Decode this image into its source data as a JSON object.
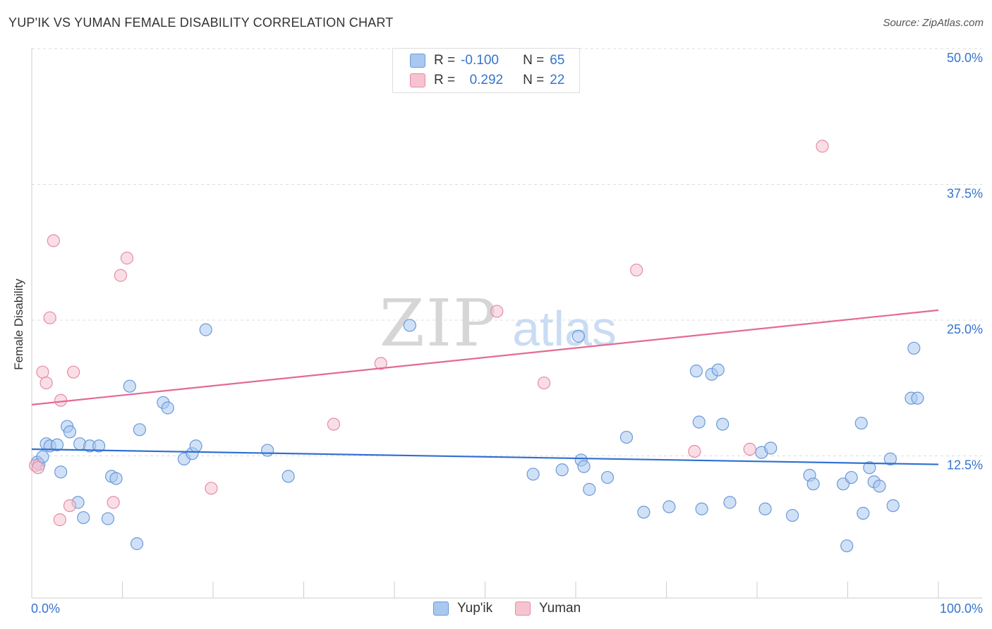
{
  "title": "YUP'IK VS YUMAN FEMALE DISABILITY CORRELATION CHART",
  "source": "Source: ZipAtlas.com",
  "watermark": {
    "zip": "ZIP",
    "atlas": "atlas"
  },
  "legend": {
    "rows": [
      {
        "r_label": "R =",
        "r_value": "-0.100",
        "n_label": "N =",
        "n_value": "65",
        "color": "#a9c8f0",
        "border": "#6a9ad8"
      },
      {
        "r_label": "R =",
        "r_value": "0.292",
        "n_label": "N =",
        "n_value": "22",
        "color": "#f6c3d1",
        "border": "#e58ca6"
      }
    ]
  },
  "bottom_legend": [
    {
      "label": "Yup'ik",
      "color": "#a9c8f0",
      "border": "#6a9ad8"
    },
    {
      "label": "Yuman",
      "color": "#f6c3d1",
      "border": "#e58ca6"
    }
  ],
  "chart_data": {
    "type": "scatter",
    "title": "YUP'IK VS YUMAN FEMALE DISABILITY CORRELATION CHART",
    "xlabel": "",
    "ylabel": "Female Disability",
    "xlim": [
      0,
      100
    ],
    "ylim": [
      0,
      50
    ],
    "x_tick_labels": [
      "0.0%",
      "100.0%"
    ],
    "y_ticks": [
      12.5,
      25.0,
      37.5,
      50.0
    ],
    "y_tick_labels": [
      "12.5%",
      "25.0%",
      "37.5%",
      "50.0%"
    ],
    "grid": true,
    "legend_position": "top-center",
    "series": [
      {
        "name": "Yup'ik",
        "color": "#6a9ad8",
        "fill": "#a9c8f0",
        "trend": {
          "x": [
            0,
            100
          ],
          "y": [
            13.7,
            12.3
          ],
          "color": "#2e6fd0"
        },
        "points": [
          [
            0.6,
            12.5
          ],
          [
            0.8,
            12.3
          ],
          [
            1.2,
            13.0
          ],
          [
            1.6,
            14.2
          ],
          [
            2.0,
            14.0
          ],
          [
            2.8,
            14.1
          ],
          [
            3.2,
            11.6
          ],
          [
            3.9,
            15.8
          ],
          [
            4.2,
            15.3
          ],
          [
            5.1,
            8.8
          ],
          [
            5.3,
            14.2
          ],
          [
            5.7,
            7.4
          ],
          [
            6.4,
            14.0
          ],
          [
            7.4,
            14.0
          ],
          [
            8.4,
            7.3
          ],
          [
            8.8,
            11.2
          ],
          [
            9.3,
            11.0
          ],
          [
            10.8,
            19.5
          ],
          [
            11.6,
            5.0
          ],
          [
            11.9,
            15.5
          ],
          [
            14.5,
            18.0
          ],
          [
            15.0,
            17.5
          ],
          [
            16.8,
            12.8
          ],
          [
            17.7,
            13.3
          ],
          [
            18.1,
            14.0
          ],
          [
            19.2,
            24.7
          ],
          [
            26.0,
            13.6
          ],
          [
            28.3,
            11.2
          ],
          [
            41.7,
            25.1
          ],
          [
            55.3,
            11.4
          ],
          [
            58.5,
            11.8
          ],
          [
            60.3,
            24.1
          ],
          [
            60.6,
            12.7
          ],
          [
            60.9,
            12.1
          ],
          [
            61.5,
            10.0
          ],
          [
            63.5,
            11.1
          ],
          [
            65.6,
            14.8
          ],
          [
            67.5,
            7.9
          ],
          [
            70.3,
            8.4
          ],
          [
            73.3,
            20.9
          ],
          [
            73.6,
            16.2
          ],
          [
            73.9,
            8.2
          ],
          [
            75.0,
            20.6
          ],
          [
            75.7,
            21.0
          ],
          [
            76.2,
            16.0
          ],
          [
            77.0,
            8.8
          ],
          [
            80.5,
            13.4
          ],
          [
            80.9,
            8.2
          ],
          [
            81.5,
            13.8
          ],
          [
            83.9,
            7.6
          ],
          [
            85.8,
            11.3
          ],
          [
            86.2,
            10.5
          ],
          [
            89.5,
            10.5
          ],
          [
            89.9,
            4.8
          ],
          [
            90.4,
            11.1
          ],
          [
            91.5,
            16.1
          ],
          [
            91.7,
            7.8
          ],
          [
            92.4,
            12.0
          ],
          [
            92.9,
            10.7
          ],
          [
            93.5,
            10.3
          ],
          [
            94.7,
            12.8
          ],
          [
            95.0,
            8.5
          ],
          [
            97.0,
            18.4
          ],
          [
            97.3,
            23.0
          ],
          [
            97.7,
            18.4
          ]
        ]
      },
      {
        "name": "Yuman",
        "color": "#e58ca6",
        "fill": "#f6c3d1",
        "trend": {
          "x": [
            0,
            100
          ],
          "y": [
            17.8,
            26.5
          ],
          "color": "#e46a92"
        },
        "points": [
          [
            0.4,
            12.2
          ],
          [
            0.7,
            12.0
          ],
          [
            1.2,
            20.8
          ],
          [
            1.6,
            19.8
          ],
          [
            2.0,
            25.8
          ],
          [
            2.4,
            32.9
          ],
          [
            3.1,
            7.2
          ],
          [
            3.2,
            18.2
          ],
          [
            4.2,
            8.5
          ],
          [
            4.6,
            20.8
          ],
          [
            9.0,
            8.8
          ],
          [
            9.8,
            29.7
          ],
          [
            10.5,
            31.3
          ],
          [
            19.8,
            10.1
          ],
          [
            33.3,
            16.0
          ],
          [
            38.5,
            21.6
          ],
          [
            51.3,
            26.4
          ],
          [
            56.5,
            19.8
          ],
          [
            66.7,
            30.2
          ],
          [
            73.1,
            13.5
          ],
          [
            79.2,
            13.7
          ],
          [
            87.2,
            41.6
          ]
        ]
      }
    ]
  }
}
